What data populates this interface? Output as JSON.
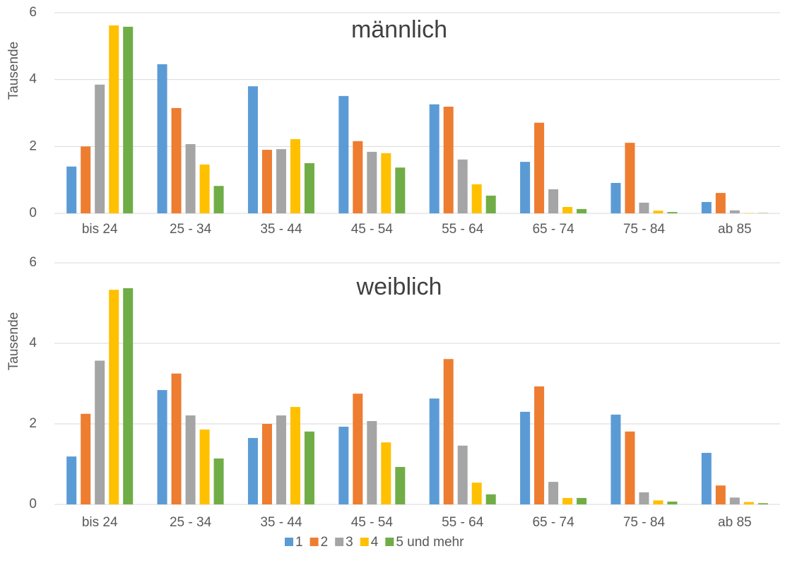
{
  "chart_data": [
    {
      "type": "bar",
      "title": "männlich",
      "ylabel": "Tausende",
      "categories": [
        "bis 24",
        "25 - 34",
        "35 - 44",
        "45 - 54",
        "55 - 64",
        "65 - 74",
        "75 - 84",
        "ab 85"
      ],
      "series": [
        {
          "name": "1",
          "color": "#5b9bd5",
          "values": [
            1.4,
            4.46,
            3.8,
            3.51,
            3.26,
            1.54,
            0.91,
            0.34
          ]
        },
        {
          "name": "2",
          "color": "#ed7d31",
          "values": [
            2.0,
            3.15,
            1.9,
            2.16,
            3.19,
            2.71,
            2.11,
            0.61
          ]
        },
        {
          "name": "3",
          "color": "#a5a5a5",
          "values": [
            3.85,
            2.07,
            1.92,
            1.84,
            1.61,
            0.72,
            0.32,
            0.09
          ]
        },
        {
          "name": "4",
          "color": "#ffc000",
          "values": [
            5.62,
            1.46,
            2.22,
            1.8,
            0.87,
            0.19,
            0.08,
            0.01
          ]
        },
        {
          "name": "5 und mehr",
          "color": "#70ad47",
          "values": [
            5.58,
            0.82,
            1.5,
            1.37,
            0.53,
            0.13,
            0.04,
            0.01
          ]
        }
      ],
      "ylim": [
        0,
        6
      ],
      "yticks": [
        0,
        2,
        4,
        6
      ],
      "grid": true
    },
    {
      "type": "bar",
      "title": "weiblich",
      "ylabel": "Tausende",
      "categories": [
        "bis 24",
        "25 - 34",
        "35 - 44",
        "45 - 54",
        "55 - 64",
        "65 - 74",
        "75 - 84",
        "ab 85"
      ],
      "series": [
        {
          "name": "1",
          "color": "#5b9bd5",
          "values": [
            1.19,
            2.84,
            1.65,
            1.93,
            2.63,
            2.3,
            2.23,
            1.28
          ]
        },
        {
          "name": "2",
          "color": "#ed7d31",
          "values": [
            2.25,
            3.25,
            2.0,
            2.75,
            3.61,
            2.93,
            1.81,
            0.47
          ]
        },
        {
          "name": "3",
          "color": "#a5a5a5",
          "values": [
            3.57,
            2.21,
            2.21,
            2.07,
            1.46,
            0.56,
            0.3,
            0.17
          ]
        },
        {
          "name": "4",
          "color": "#ffc000",
          "values": [
            5.33,
            1.86,
            2.42,
            1.54,
            0.54,
            0.16,
            0.1,
            0.06
          ]
        },
        {
          "name": "5 und mehr",
          "color": "#70ad47",
          "values": [
            5.37,
            1.14,
            1.81,
            0.93,
            0.25,
            0.16,
            0.07,
            0.03
          ]
        }
      ],
      "ylim": [
        0,
        6
      ],
      "yticks": [
        0,
        2,
        4,
        6
      ],
      "grid": true
    }
  ]
}
